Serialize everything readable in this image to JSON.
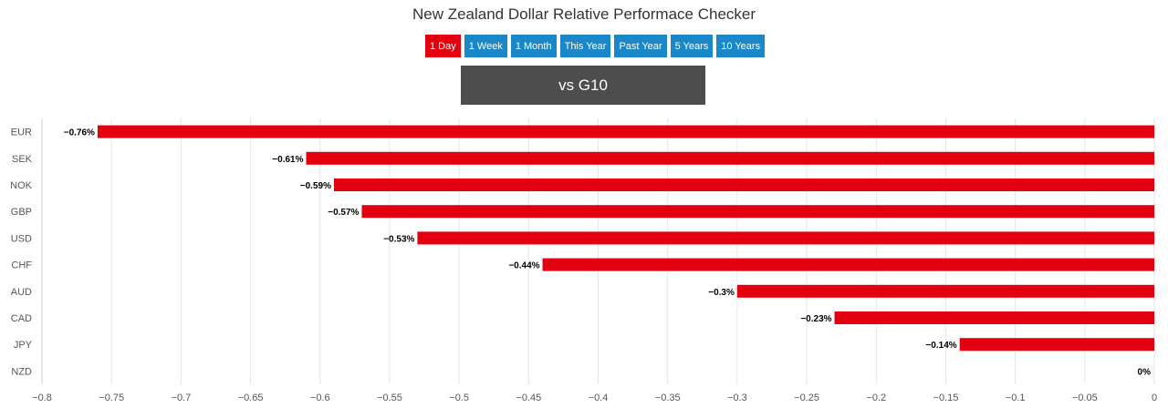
{
  "page": {
    "title": "New Zealand Dollar Relative Performace Checker",
    "periods": [
      "1 Day",
      "1 Week",
      "1 Month",
      "This Year",
      "Past Year",
      "5 Years",
      "10 Years"
    ],
    "active_period": "1 Day",
    "comparison_label": "vs G10"
  },
  "colors": {
    "bar": "#e3000f",
    "active_button": "#e3000f",
    "button": "#1a87c9",
    "comparison_box": "#4d4d4d",
    "grid": "#e6e6e6"
  },
  "chart_data": {
    "type": "bar",
    "orientation": "horizontal",
    "categories": [
      "EUR",
      "SEK",
      "NOK",
      "GBP",
      "USD",
      "CHF",
      "AUD",
      "CAD",
      "JPY",
      "NZD"
    ],
    "values": [
      -0.76,
      -0.61,
      -0.59,
      -0.57,
      -0.53,
      -0.44,
      -0.3,
      -0.23,
      -0.14,
      0
    ],
    "data_labels": [
      "−0.76%",
      "−0.61%",
      "−0.59%",
      "−0.57%",
      "−0.53%",
      "−0.44%",
      "−0.3%",
      "−0.23%",
      "−0.14%",
      "0%"
    ],
    "xlim": [
      -0.8,
      0
    ],
    "x_ticks": [
      -0.8,
      -0.75,
      -0.7,
      -0.65,
      -0.6,
      -0.55,
      -0.5,
      -0.45,
      -0.4,
      -0.35,
      -0.3,
      -0.25,
      -0.2,
      -0.15,
      -0.1,
      -0.05,
      0
    ],
    "x_tick_labels": [
      "−0.8",
      "−0.75",
      "−0.7",
      "−0.65",
      "−0.6",
      "−0.55",
      "−0.5",
      "−0.45",
      "−0.4",
      "−0.35",
      "−0.3",
      "−0.25",
      "−0.2",
      "−0.15",
      "−0.1",
      "−0.05",
      "0"
    ],
    "grid": "vertical",
    "legend": "none"
  }
}
